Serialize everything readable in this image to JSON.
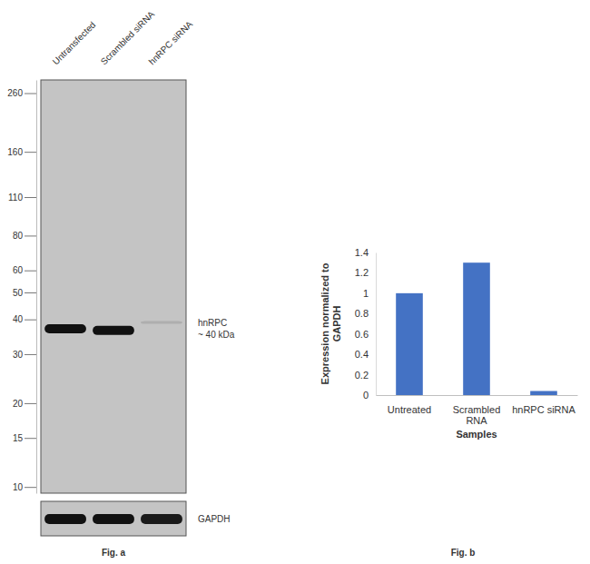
{
  "chart_data": [
    {
      "type": "blot",
      "caption": "Fig. a",
      "categories": [
        "Untransfected",
        "Scrambled siRNA",
        "hnRPC siRNA"
      ],
      "ylim": [
        9.5,
        290
      ],
      "log": "y",
      "yticks": [
        260,
        160,
        110,
        80,
        60,
        50,
        40,
        30,
        20,
        15,
        10
      ],
      "series": [
        {
          "name": "hnRPC\n~ 40 kDa",
          "values": [
            37,
            36.5,
            39
          ],
          "intensity": [
            1,
            1,
            0.12
          ]
        }
      ],
      "loading_control": {
        "name": "GAPDH",
        "intensity": [
          1,
          1,
          0.95
        ]
      }
    },
    {
      "type": "bar",
      "caption": "Fig. b",
      "categories": [
        "Untreated",
        "Scrambled RNA",
        "hnRPC siRNA"
      ],
      "values": [
        1,
        1.3,
        0.04
      ],
      "color": "#4472c4",
      "ylim": [
        0,
        1.4
      ],
      "yticks": [
        0,
        0.2,
        0.4,
        0.6,
        0.8,
        1,
        1.2,
        1.4
      ],
      "x_label": "Samples",
      "y_label": "Expression normalized to\nGAPDH",
      "grid": false
    }
  ]
}
